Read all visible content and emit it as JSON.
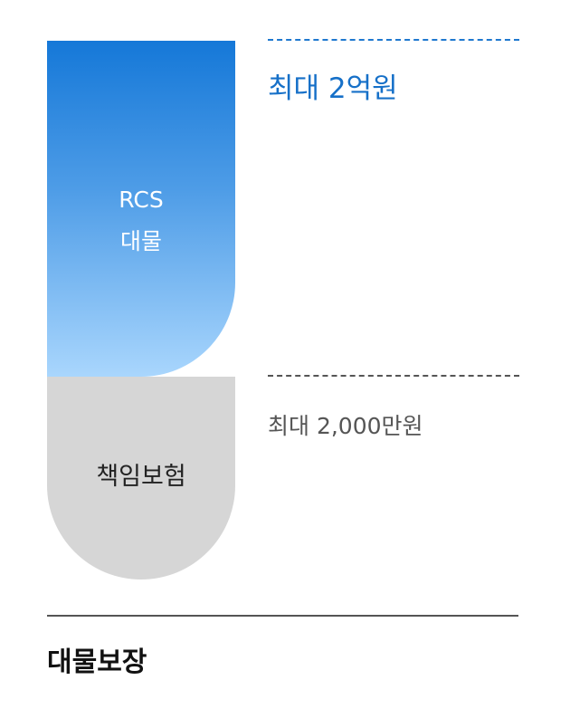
{
  "rcs_block": {
    "label_line1": "RCS",
    "label_line2": "대물",
    "limit": "최대 2억원"
  },
  "insurance_block": {
    "label": "책임보험",
    "limit": "최대 2,000만원"
  },
  "caption": "대물보장",
  "colors": {
    "rcs_gradient_top": "#1578d8",
    "rcs_gradient_bottom": "#a9d6fd",
    "rcs_limit_text": "#1670c8",
    "insurance_fill": "#d6d6d6",
    "insurance_limit_text": "#555555"
  }
}
